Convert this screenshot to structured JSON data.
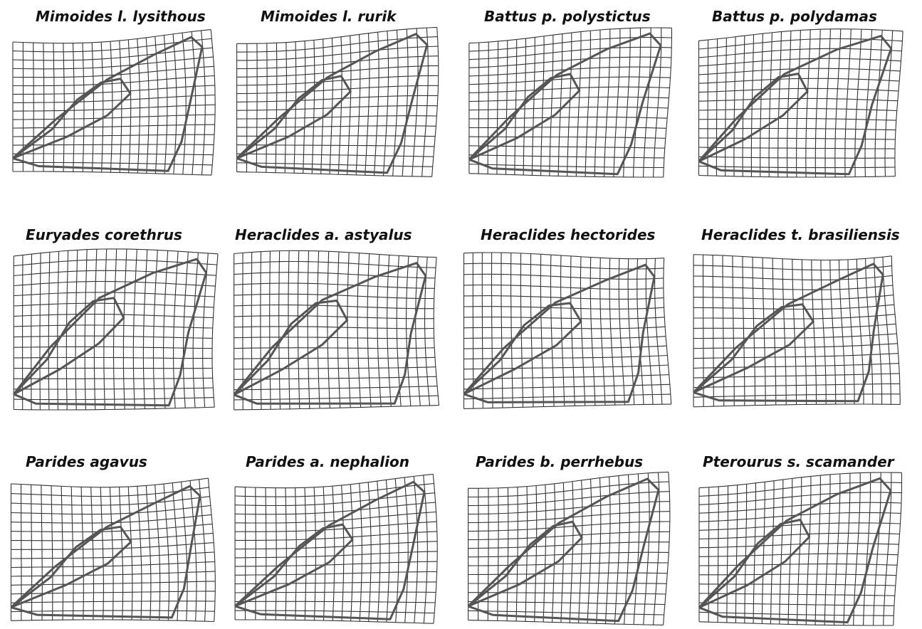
{
  "panels": [
    {
      "title": "Mimoides l. lysithous"
    },
    {
      "title": "Mimoides l. rurik"
    },
    {
      "title": "Battus p. polystictus"
    },
    {
      "title": "Battus p. polydamas"
    },
    {
      "title": "Euryades corethrus"
    },
    {
      "title": "Heraclides a. astyalus"
    },
    {
      "title": "Heraclides hectorides"
    },
    {
      "title": "Heraclides t. brasiliensis"
    },
    {
      "title": "Parides agavus"
    },
    {
      "title": "Parides a. nephalion"
    },
    {
      "title": "Parides b. perrhebus"
    },
    {
      "title": "Pterourus s. scamander"
    }
  ]
}
